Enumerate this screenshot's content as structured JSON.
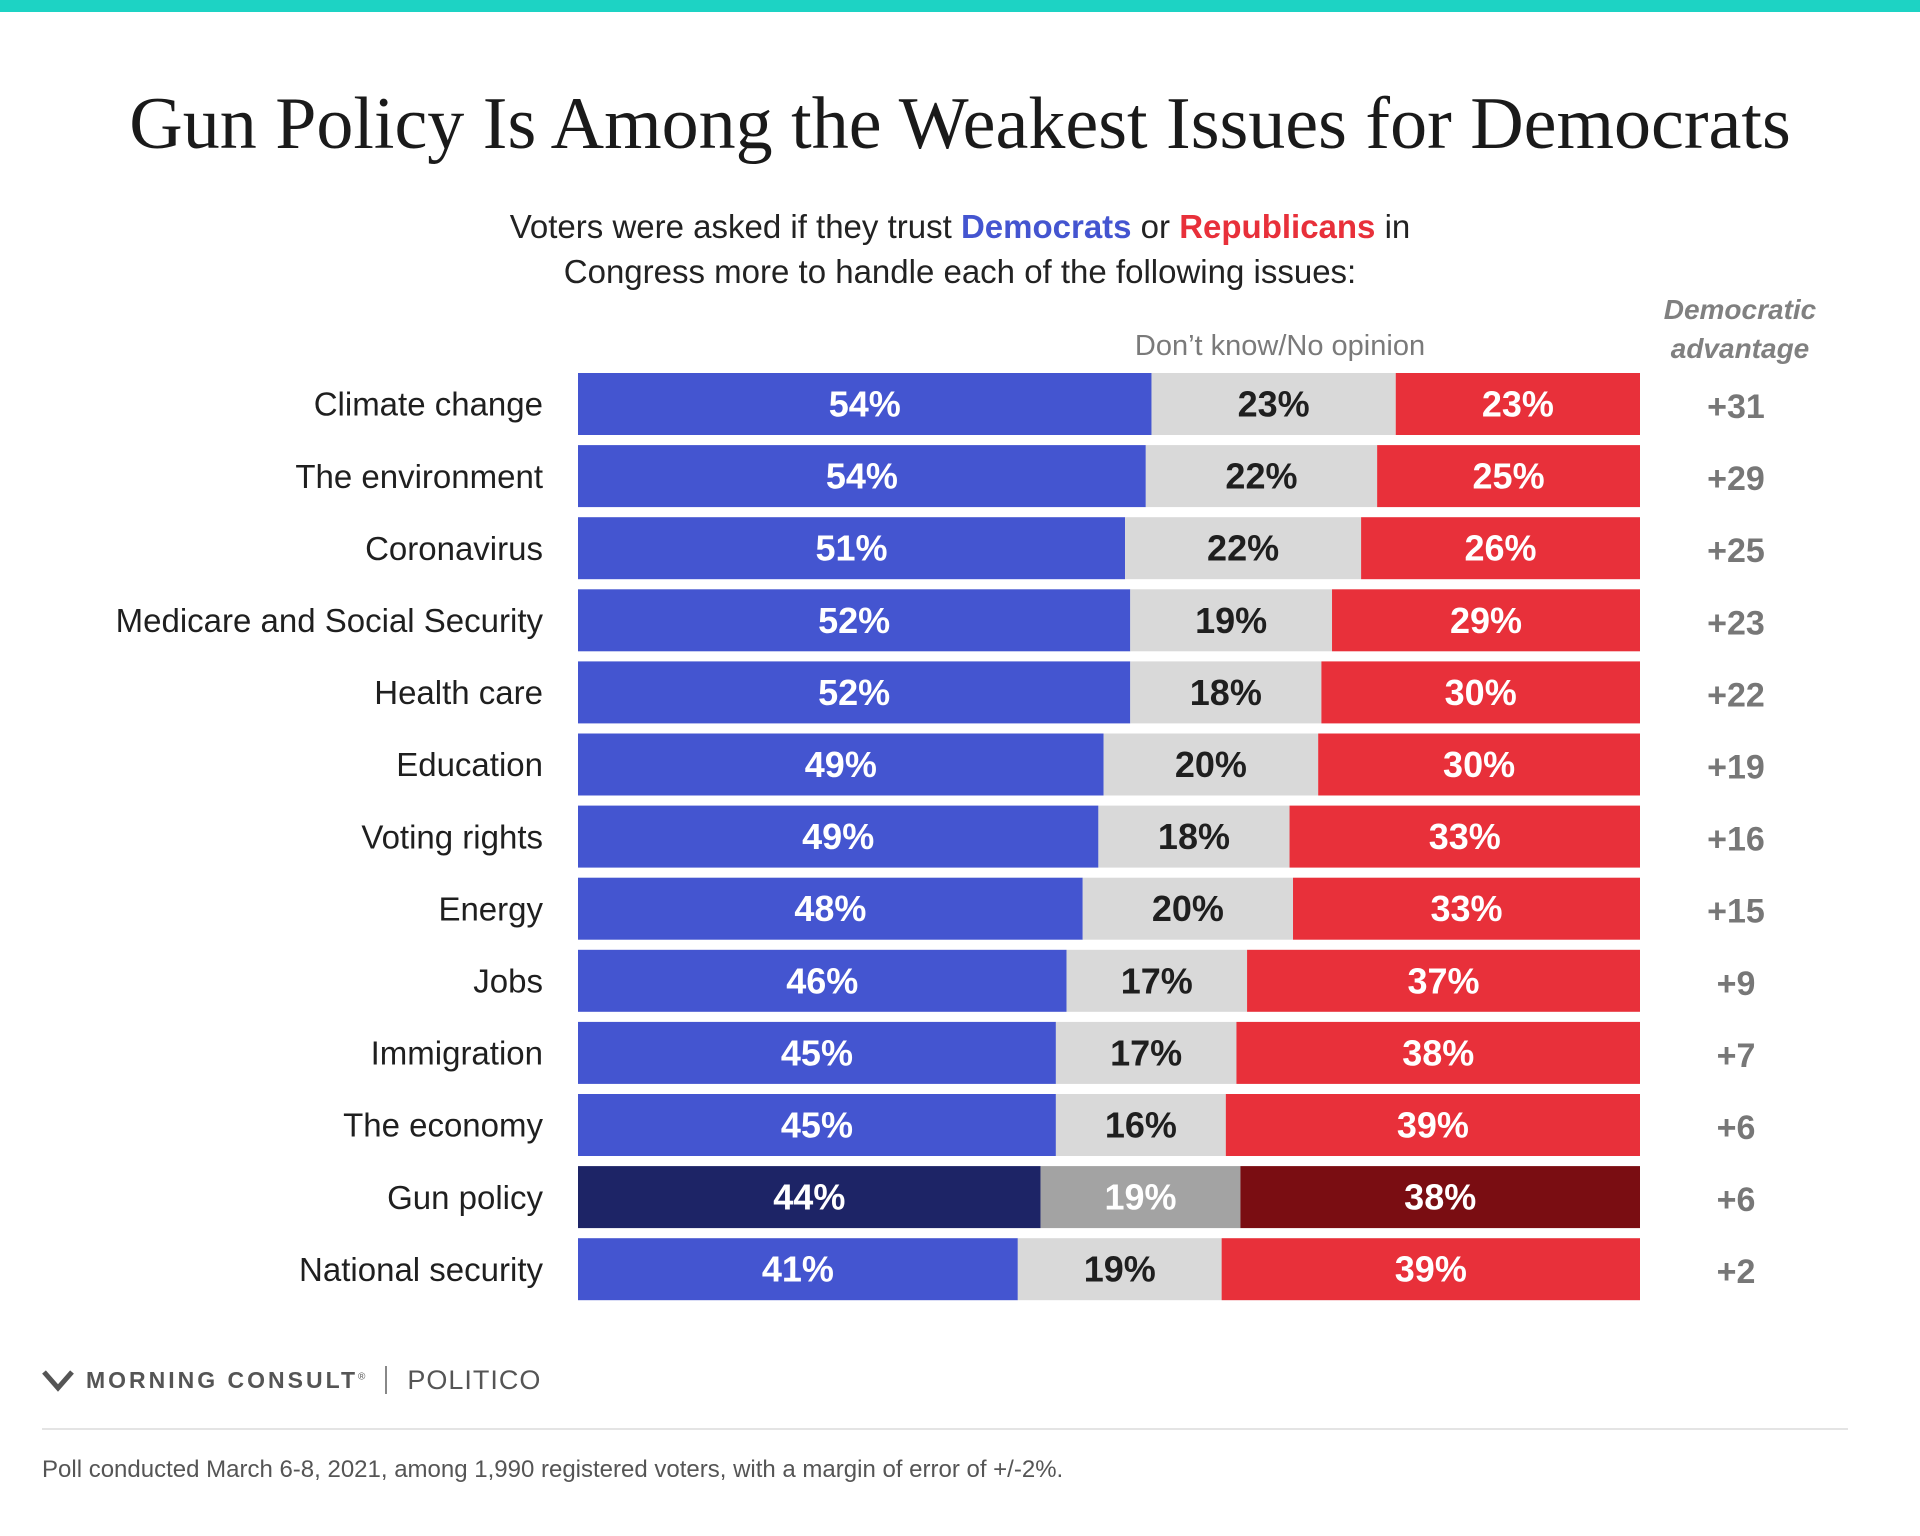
{
  "title": "Gun Policy Is Among the Weakest Issues for Democrats",
  "subtitle": {
    "prefix": "Voters were asked if they trust ",
    "democrats": "Democrats",
    "middle": " or ",
    "republicans": "Republicans",
    "suffix": " in",
    "line2": "Congress more to handle each of the following issues:"
  },
  "legend_dont_know": "Don’t know/No opinion",
  "advantage_header": {
    "line1": "Democratic",
    "line2": "advantage"
  },
  "colors": {
    "top_bar": "#1dd3c4",
    "democrats": "#4455d0",
    "dont_know": "#d9d9d9",
    "republicans": "#e8303a",
    "highlight_democrats": "#1d2466",
    "highlight_dont_know": "#a3a3a3",
    "highlight_republicans": "#7a0d12",
    "advantage_text": "#777777"
  },
  "chart_data": {
    "type": "bar",
    "orientation": "horizontal",
    "stacked": true,
    "categories": [
      "Climate change",
      "The environment",
      "Coronavirus",
      "Medicare and Social Security",
      "Health care",
      "Education",
      "Voting rights",
      "Energy",
      "Jobs",
      "Immigration",
      "The economy",
      "Gun policy",
      "National security"
    ],
    "series": [
      {
        "name": "Democrats",
        "values": [
          54,
          54,
          51,
          52,
          52,
          49,
          49,
          48,
          46,
          45,
          45,
          44,
          41
        ]
      },
      {
        "name": "Don’t know/No opinion",
        "values": [
          23,
          22,
          22,
          19,
          18,
          20,
          18,
          20,
          17,
          17,
          16,
          19,
          19
        ]
      },
      {
        "name": "Republicans",
        "values": [
          23,
          25,
          26,
          29,
          30,
          30,
          33,
          33,
          37,
          38,
          39,
          38,
          39
        ]
      }
    ],
    "democratic_advantage": [
      "+31",
      "+29",
      "+25",
      "+23",
      "+22",
      "+19",
      "+16",
      "+15",
      "+9",
      "+7",
      "+6",
      "+6",
      "+2"
    ],
    "highlighted_category": "Gun policy",
    "value_suffix": "%"
  },
  "logos": {
    "morning_consult": "MORNING CONSULT",
    "registered_mark": "®",
    "politico": "POLITICO"
  },
  "footnote": "Poll conducted March 6-8, 2021, among 1,990 registered voters, with a margin of error of +/-2%."
}
